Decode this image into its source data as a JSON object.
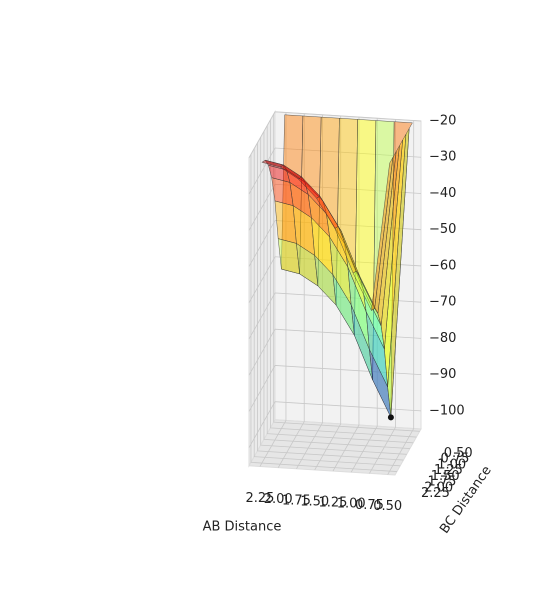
{
  "chart_data": {
    "type": "surface3d",
    "xlabel": "AB Distance",
    "ylabel": "BC Distance",
    "x": [
      0.5,
      0.75,
      1.0,
      1.25,
      1.5,
      1.75,
      2.0,
      2.25
    ],
    "y": [
      0.5,
      0.75,
      1.0,
      1.25,
      1.5,
      1.75,
      2.0,
      2.25
    ],
    "z": [
      [
        -20,
        -20,
        -20,
        -20,
        -20,
        -20,
        -20,
        -20
      ],
      [
        -20,
        -100,
        -90,
        -78,
        -70,
        -65,
        -62,
        -61
      ],
      [
        -20,
        -90,
        -80,
        -68,
        -60,
        -55,
        -52,
        -51
      ],
      [
        -20,
        -78,
        -68,
        -56,
        -48,
        -43,
        -40,
        -39
      ],
      [
        -20,
        -70,
        -60,
        -48,
        -40,
        -35,
        -32,
        -31
      ],
      [
        -20,
        -65,
        -55,
        -43,
        -35,
        -30,
        -27,
        -26
      ],
      [
        -20,
        -62,
        -52,
        -40,
        -32,
        -27,
        -24,
        -23
      ],
      [
        -20,
        -61,
        -51,
        -39,
        -31,
        -26,
        -23,
        -22
      ]
    ],
    "point": [
      0.75,
      0.75,
      -100
    ],
    "xlim": [
      0.4,
      2.4
    ],
    "ylim": [
      0.4,
      2.4
    ],
    "zlim": [
      -105,
      -20
    ],
    "xticks": [
      {
        "value": 2.25,
        "label": "2.25"
      },
      {
        "value": 2.0,
        "label": "2.00"
      },
      {
        "value": 1.75,
        "label": "1.75"
      },
      {
        "value": 1.5,
        "label": "1.50"
      },
      {
        "value": 1.25,
        "label": "1.25"
      },
      {
        "value": 1.0,
        "label": "1.00"
      },
      {
        "value": 0.75,
        "label": "0.75"
      },
      {
        "value": 0.5,
        "label": "0.50"
      }
    ],
    "yticks": [
      {
        "value": 0.5,
        "label": "0.50"
      },
      {
        "value": 0.75,
        "label": "0.75"
      },
      {
        "value": 1.0,
        "label": "1.00"
      },
      {
        "value": 1.25,
        "label": "1.25"
      },
      {
        "value": 1.5,
        "label": "1.50"
      },
      {
        "value": 1.75,
        "label": "1.75"
      },
      {
        "value": 2.0,
        "label": "2.00"
      },
      {
        "value": 2.25,
        "label": "2.25"
      }
    ],
    "zticks": [
      {
        "value": -20,
        "label": "−20"
      },
      {
        "value": -30,
        "label": "−30"
      },
      {
        "value": -40,
        "label": "−40"
      },
      {
        "value": -50,
        "label": "−50"
      },
      {
        "value": -60,
        "label": "−60"
      },
      {
        "value": -70,
        "label": "−70"
      },
      {
        "value": -80,
        "label": "−80"
      },
      {
        "value": -90,
        "label": "−90"
      },
      {
        "value": -100,
        "label": "−100"
      }
    ],
    "grid": true
  }
}
